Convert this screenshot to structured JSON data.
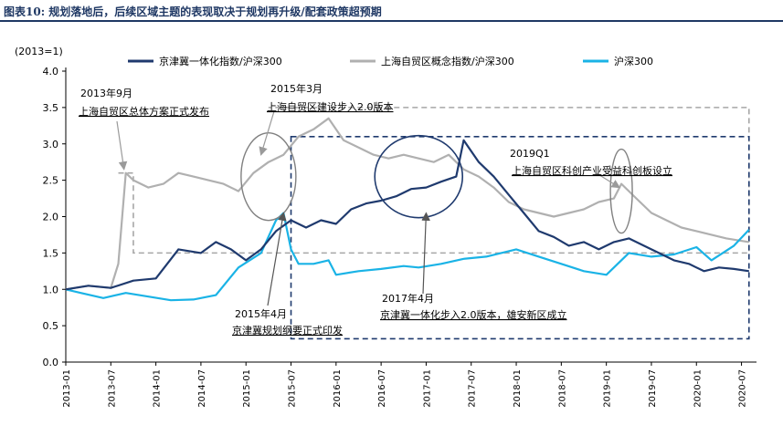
{
  "header": {
    "title": "图表10:  规划落地后，后续区域主题的表现取决于规划再升级/配套政策超预期"
  },
  "chart_data": {
    "type": "line",
    "unit_label": "(2013=1)",
    "ylim": [
      0.0,
      4.0
    ],
    "yticks": [
      "0.0",
      "0.5",
      "1.0",
      "1.5",
      "2.0",
      "2.5",
      "3.0",
      "3.5",
      "4.0"
    ],
    "xticks": [
      "2013-01",
      "2013-07",
      "2014-01",
      "2014-07",
      "2015-01",
      "2015-07",
      "2016-01",
      "2016-07",
      "2017-01",
      "2017-07",
      "2018-01",
      "2018-07",
      "2019-01",
      "2019-07",
      "2020-01",
      "2020-07"
    ],
    "series": [
      {
        "name": "京津冀一体化指数/沪深300",
        "color": "#1f3a6e",
        "points": [
          [
            "2013-01",
            1.0
          ],
          [
            "2013-04",
            1.05
          ],
          [
            "2013-07",
            1.02
          ],
          [
            "2013-10",
            1.12
          ],
          [
            "2014-01",
            1.15
          ],
          [
            "2014-04",
            1.55
          ],
          [
            "2014-07",
            1.5
          ],
          [
            "2014-09",
            1.65
          ],
          [
            "2014-11",
            1.55
          ],
          [
            "2015-01",
            1.4
          ],
          [
            "2015-03",
            1.55
          ],
          [
            "2015-05",
            1.8
          ],
          [
            "2015-07",
            1.95
          ],
          [
            "2015-09",
            1.85
          ],
          [
            "2015-11",
            1.95
          ],
          [
            "2016-01",
            1.9
          ],
          [
            "2016-03",
            2.1
          ],
          [
            "2016-05",
            2.18
          ],
          [
            "2016-07",
            2.22
          ],
          [
            "2016-09",
            2.28
          ],
          [
            "2016-11",
            2.38
          ],
          [
            "2017-01",
            2.4
          ],
          [
            "2017-03",
            2.48
          ],
          [
            "2017-05",
            2.55
          ],
          [
            "2017-06",
            3.05
          ],
          [
            "2017-08",
            2.75
          ],
          [
            "2017-10",
            2.55
          ],
          [
            "2017-12",
            2.3
          ],
          [
            "2018-02",
            2.05
          ],
          [
            "2018-04",
            1.8
          ],
          [
            "2018-06",
            1.72
          ],
          [
            "2018-08",
            1.6
          ],
          [
            "2018-10",
            1.65
          ],
          [
            "2018-12",
            1.55
          ],
          [
            "2019-02",
            1.65
          ],
          [
            "2019-04",
            1.7
          ],
          [
            "2019-06",
            1.6
          ],
          [
            "2019-08",
            1.5
          ],
          [
            "2019-10",
            1.4
          ],
          [
            "2019-12",
            1.35
          ],
          [
            "2020-02",
            1.25
          ],
          [
            "2020-04",
            1.3
          ],
          [
            "2020-06",
            1.28
          ],
          [
            "2020-08",
            1.25
          ]
        ]
      },
      {
        "name": "上海自贸区概念指数/沪深300",
        "color": "#b0b0b0",
        "points": [
          [
            "2013-01",
            1.0
          ],
          [
            "2013-04",
            1.05
          ],
          [
            "2013-07",
            1.02
          ],
          [
            "2013-08",
            1.35
          ],
          [
            "2013-09",
            2.6
          ],
          [
            "2013-10",
            2.5
          ],
          [
            "2013-12",
            2.4
          ],
          [
            "2014-02",
            2.45
          ],
          [
            "2014-04",
            2.6
          ],
          [
            "2014-06",
            2.55
          ],
          [
            "2014-08",
            2.5
          ],
          [
            "2014-10",
            2.45
          ],
          [
            "2014-12",
            2.35
          ],
          [
            "2015-02",
            2.6
          ],
          [
            "2015-04",
            2.75
          ],
          [
            "2015-06",
            2.85
          ],
          [
            "2015-08",
            3.1
          ],
          [
            "2015-10",
            3.2
          ],
          [
            "2015-12",
            3.35
          ],
          [
            "2016-02",
            3.05
          ],
          [
            "2016-04",
            2.95
          ],
          [
            "2016-06",
            2.85
          ],
          [
            "2016-08",
            2.8
          ],
          [
            "2016-10",
            2.85
          ],
          [
            "2016-12",
            2.8
          ],
          [
            "2017-02",
            2.75
          ],
          [
            "2017-04",
            2.85
          ],
          [
            "2017-06",
            2.65
          ],
          [
            "2017-08",
            2.55
          ],
          [
            "2017-10",
            2.4
          ],
          [
            "2017-12",
            2.2
          ],
          [
            "2018-02",
            2.1
          ],
          [
            "2018-04",
            2.05
          ],
          [
            "2018-06",
            2.0
          ],
          [
            "2018-08",
            2.05
          ],
          [
            "2018-10",
            2.1
          ],
          [
            "2018-12",
            2.2
          ],
          [
            "2019-02",
            2.25
          ],
          [
            "2019-03",
            2.45
          ],
          [
            "2019-05",
            2.25
          ],
          [
            "2019-07",
            2.05
          ],
          [
            "2019-09",
            1.95
          ],
          [
            "2019-11",
            1.85
          ],
          [
            "2020-01",
            1.8
          ],
          [
            "2020-03",
            1.75
          ],
          [
            "2020-05",
            1.7
          ],
          [
            "2020-08",
            1.65
          ]
        ]
      },
      {
        "name": "沪深300",
        "color": "#1ab3e6",
        "points": [
          [
            "2013-01",
            1.0
          ],
          [
            "2013-03",
            0.95
          ],
          [
            "2013-06",
            0.88
          ],
          [
            "2013-09",
            0.95
          ],
          [
            "2013-12",
            0.9
          ],
          [
            "2014-03",
            0.85
          ],
          [
            "2014-06",
            0.86
          ],
          [
            "2014-09",
            0.92
          ],
          [
            "2014-12",
            1.3
          ],
          [
            "2015-03",
            1.5
          ],
          [
            "2015-05",
            1.95
          ],
          [
            "2015-06",
            2.05
          ],
          [
            "2015-07",
            1.55
          ],
          [
            "2015-08",
            1.35
          ],
          [
            "2015-10",
            1.35
          ],
          [
            "2015-12",
            1.4
          ],
          [
            "2016-01",
            1.2
          ],
          [
            "2016-04",
            1.25
          ],
          [
            "2016-07",
            1.28
          ],
          [
            "2016-10",
            1.32
          ],
          [
            "2016-12",
            1.3
          ],
          [
            "2017-03",
            1.35
          ],
          [
            "2017-06",
            1.42
          ],
          [
            "2017-09",
            1.45
          ],
          [
            "2018-01",
            1.55
          ],
          [
            "2018-04",
            1.45
          ],
          [
            "2018-07",
            1.35
          ],
          [
            "2018-10",
            1.25
          ],
          [
            "2019-01",
            1.2
          ],
          [
            "2019-04",
            1.5
          ],
          [
            "2019-07",
            1.45
          ],
          [
            "2019-10",
            1.48
          ],
          [
            "2020-01",
            1.58
          ],
          [
            "2020-03",
            1.4
          ],
          [
            "2020-06",
            1.6
          ],
          [
            "2020-08",
            1.82
          ]
        ]
      }
    ],
    "annotations": [
      {
        "date": "2013年9月",
        "text": "上海自贸区总体方案正式发布"
      },
      {
        "date": "2015年3月",
        "text": "上海自贸区建设步入2.0版本"
      },
      {
        "date": "2019Q1",
        "text": "上海自贸区科创产业受益科创板设立"
      },
      {
        "date": "2015年4月",
        "text": "京津冀规划纲要正式印发"
      },
      {
        "date": "2017年4月",
        "text": "京津冀一体化步入2.0版本，雄安新区成立"
      }
    ]
  }
}
